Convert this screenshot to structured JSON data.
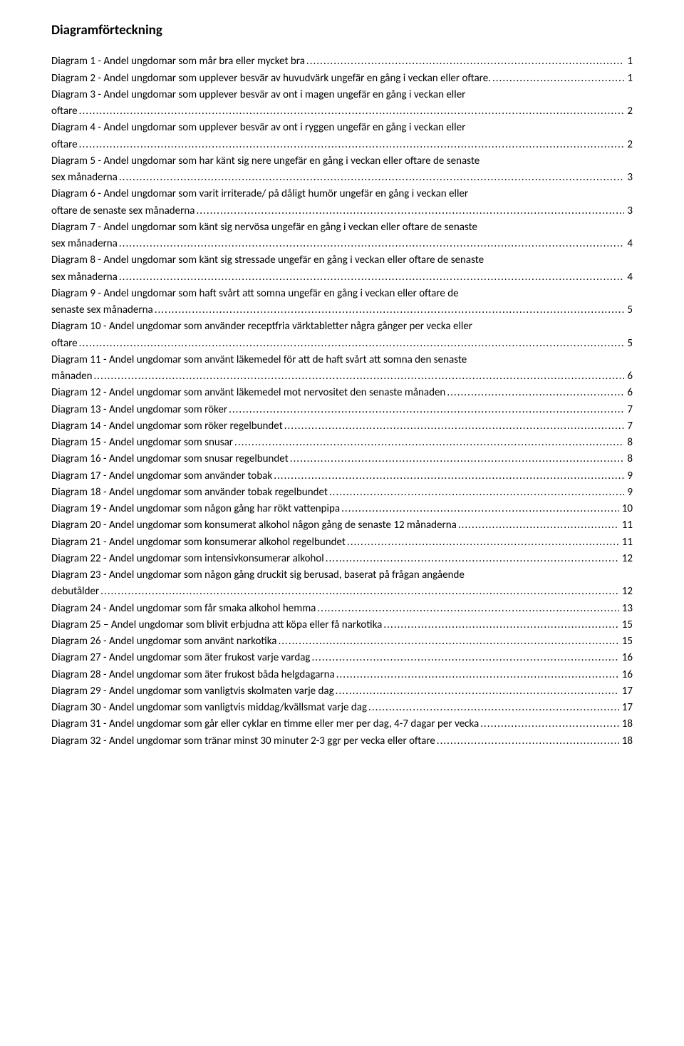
{
  "title": "Diagramförteckning",
  "entries": [
    {
      "lines": [
        "Diagram 1 - Andel ungdomar som mår bra eller mycket bra"
      ],
      "page": "1"
    },
    {
      "lines": [
        "Diagram 2 - Andel ungdomar som upplever besvär av huvudvärk ungefär en gång i veckan eller oftare."
      ],
      "page": "1"
    },
    {
      "lines": [
        "Diagram 3 - Andel ungdomar som upplever besvär av ont i magen ungefär en gång i veckan eller",
        "oftare"
      ],
      "page": "2"
    },
    {
      "lines": [
        "Diagram 4 - Andel ungdomar som upplever besvär av ont i ryggen ungefär en gång i veckan eller",
        "oftare"
      ],
      "page": "2"
    },
    {
      "lines": [
        "Diagram 5 - Andel ungdomar som har känt sig nere ungefär en gång i veckan eller oftare de senaste",
        "sex månaderna"
      ],
      "page": "3"
    },
    {
      "lines": [
        "Diagram 6 - Andel ungdomar som varit irriterade/ på dåligt humör ungefär en gång i veckan eller",
        "oftare de senaste sex månaderna"
      ],
      "page": "3"
    },
    {
      "lines": [
        "Diagram 7 - Andel ungdomar som känt sig nervösa ungefär en gång i veckan eller oftare de senaste",
        "sex månaderna"
      ],
      "page": "4"
    },
    {
      "lines": [
        "Diagram 8 - Andel ungdomar som känt sig stressade ungefär en gång i veckan eller oftare de senaste",
        "sex månaderna"
      ],
      "page": "4"
    },
    {
      "lines": [
        "Diagram 9 - Andel ungdomar som haft svårt att somna ungefär en gång i veckan eller oftare de",
        "senaste sex månaderna"
      ],
      "page": "5"
    },
    {
      "lines": [
        "Diagram 10 - Andel ungdomar som använder receptfria värktabletter några gånger per vecka eller",
        "oftare"
      ],
      "page": "5"
    },
    {
      "lines": [
        "Diagram 11 - Andel ungdomar som använt läkemedel för att de haft svårt att somna den senaste",
        "månaden"
      ],
      "page": "6"
    },
    {
      "lines": [
        "Diagram 12 - Andel ungdomar som använt läkemedel mot nervositet den senaste månaden"
      ],
      "page": "6"
    },
    {
      "lines": [
        "Diagram 13 - Andel ungdomar som röker"
      ],
      "page": "7"
    },
    {
      "lines": [
        "Diagram 14 - Andel ungdomar som röker regelbundet"
      ],
      "page": "7"
    },
    {
      "lines": [
        "Diagram 15 - Andel ungdomar som snusar"
      ],
      "page": "8"
    },
    {
      "lines": [
        "Diagram 16 - Andel ungdomar som snusar regelbundet"
      ],
      "page": "8"
    },
    {
      "lines": [
        "Diagram 17 - Andel ungdomar som använder tobak"
      ],
      "page": "9"
    },
    {
      "lines": [
        "Diagram 18 - Andel ungdomar som använder tobak regelbundet"
      ],
      "page": "9"
    },
    {
      "lines": [
        "Diagram 19 - Andel ungdomar som någon gång har rökt vattenpipa"
      ],
      "page": "10"
    },
    {
      "lines": [
        "Diagram 20 - Andel ungdomar som konsumerat alkohol någon gång de senaste 12 månaderna"
      ],
      "page": "11"
    },
    {
      "lines": [
        "Diagram 21 - Andel ungdomar som konsumerar alkohol regelbundet"
      ],
      "page": "11"
    },
    {
      "lines": [
        "Diagram 22 - Andel ungdomar som intensivkonsumerar alkohol"
      ],
      "page": "12"
    },
    {
      "lines": [
        "Diagram 23 - Andel ungdomar som någon gång druckit sig berusad, baserat på frågan angående",
        "debutålder"
      ],
      "page": "12"
    },
    {
      "lines": [
        "Diagram 24 - Andel ungdomar som får smaka alkohol hemma"
      ],
      "page": "13"
    },
    {
      "lines": [
        "Diagram 25 – Andel ungdomar som blivit erbjudna att köpa eller få narkotika"
      ],
      "page": "15"
    },
    {
      "lines": [
        "Diagram 26 - Andel ungdomar som använt narkotika"
      ],
      "page": "15"
    },
    {
      "lines": [
        "Diagram 27 - Andel ungdomar som äter frukost varje vardag"
      ],
      "page": "16"
    },
    {
      "lines": [
        "Diagram 28 - Andel ungdomar som äter frukost båda helgdagarna"
      ],
      "page": "16"
    },
    {
      "lines": [
        "Diagram 29 - Andel ungdomar som vanligtvis skolmaten varje dag"
      ],
      "page": "17"
    },
    {
      "lines": [
        "Diagram 30 - Andel ungdomar som vanligtvis middag/kvällsmat varje dag"
      ],
      "page": "17"
    },
    {
      "lines": [
        "Diagram 31 - Andel ungdomar som går eller cyklar en timme eller mer per dag, 4-7 dagar per vecka"
      ],
      "page": "18"
    },
    {
      "lines": [
        "Diagram 32 - Andel ungdomar som tränar minst 30 minuter 2-3 ggr per vecka eller oftare"
      ],
      "page": "18"
    }
  ]
}
